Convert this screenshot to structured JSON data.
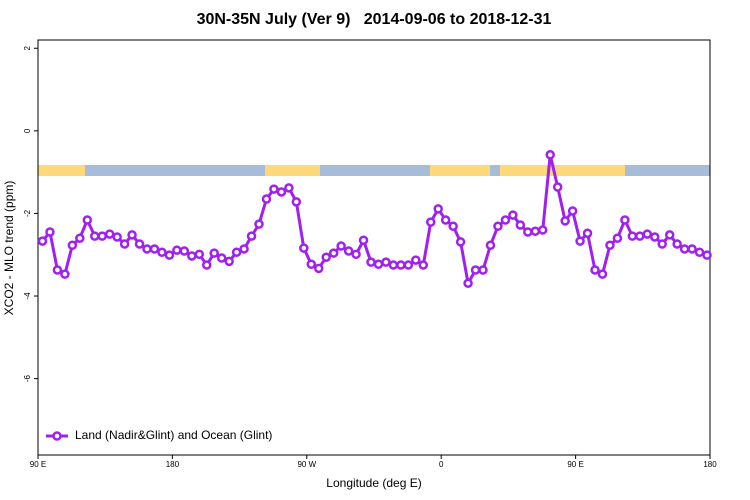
{
  "chart_data": {
    "type": "line",
    "title": "30N-35N July (Ver 9)   2014-09-06 to 2018-12-31",
    "x_label": "Longitude (deg E)",
    "y_label": "XCO2 - MLO trend (ppm)",
    "legend": "bottom-left",
    "x": [
      93,
      98,
      103,
      108,
      113,
      118,
      123,
      128,
      133,
      138,
      143,
      148,
      153,
      158,
      163,
      168,
      173,
      178,
      183,
      188,
      193,
      198,
      203,
      208,
      213,
      218,
      223,
      228,
      233,
      238,
      243,
      248,
      253,
      258,
      263,
      268,
      273,
      278,
      283,
      288,
      293,
      298,
      303,
      308,
      313,
      318,
      323,
      328,
      333,
      338,
      343,
      348,
      353,
      358,
      363,
      368,
      373,
      378,
      383,
      388,
      393,
      398,
      403,
      408,
      413,
      418,
      423,
      428,
      433,
      438,
      443,
      448,
      453,
      458,
      463,
      468,
      473,
      478,
      483,
      488,
      493,
      498,
      503,
      508,
      513,
      518,
      523,
      528,
      533,
      538
    ],
    "series": [
      {
        "name": "Land (Nadir&Glint) and Ocean (Glint)",
        "color": "#a020f0",
        "values": [
          -2.67,
          -2.45,
          -3.37,
          -3.47,
          -2.77,
          -2.6,
          -2.16,
          -2.55,
          -2.55,
          -2.5,
          -2.57,
          -2.74,
          -2.52,
          -2.74,
          -2.86,
          -2.86,
          -2.94,
          -3.01,
          -2.89,
          -2.91,
          -3.03,
          -2.99,
          -3.25,
          -2.96,
          -3.08,
          -3.16,
          -2.94,
          -2.86,
          -2.55,
          -2.26,
          -1.65,
          -1.41,
          -1.48,
          -1.38,
          -1.72,
          -2.84,
          -3.23,
          -3.33,
          -3.06,
          -2.96,
          -2.79,
          -2.91,
          -2.99,
          -2.65,
          -3.18,
          -3.23,
          -3.18,
          -3.25,
          -3.25,
          -3.25,
          -3.13,
          -3.25,
          -2.21,
          -1.89,
          -2.16,
          -2.31,
          -2.69,
          -3.69,
          -3.37,
          -3.37,
          -2.77,
          -2.31,
          -2.16,
          -2.04,
          -2.28,
          -2.45,
          -2.43,
          -2.4,
          -0.58,
          -1.36,
          -2.18,
          -1.94,
          -2.67,
          -2.48,
          -3.37,
          -3.47,
          -2.77,
          -2.6,
          -2.16,
          -2.55,
          -2.55,
          -2.5,
          -2.57,
          -2.74,
          -2.52,
          -2.74,
          -2.86,
          -2.86,
          -2.94,
          -3.01
        ]
      }
    ],
    "xlim": [
      90,
      540
    ],
    "xticks": [
      {
        "value": 90,
        "label": "90 E"
      },
      180,
      {
        "value": 270,
        "label": "90 W"
      },
      {
        "value": 360,
        "label": "0"
      },
      {
        "value": 450,
        "label": "90 E"
      },
      {
        "value": 540,
        "label": "180"
      }
    ],
    "ylim": [
      -7.85,
      2.2
    ],
    "yticks": [
      2,
      0,
      -2,
      -4,
      -6
    ]
  }
}
